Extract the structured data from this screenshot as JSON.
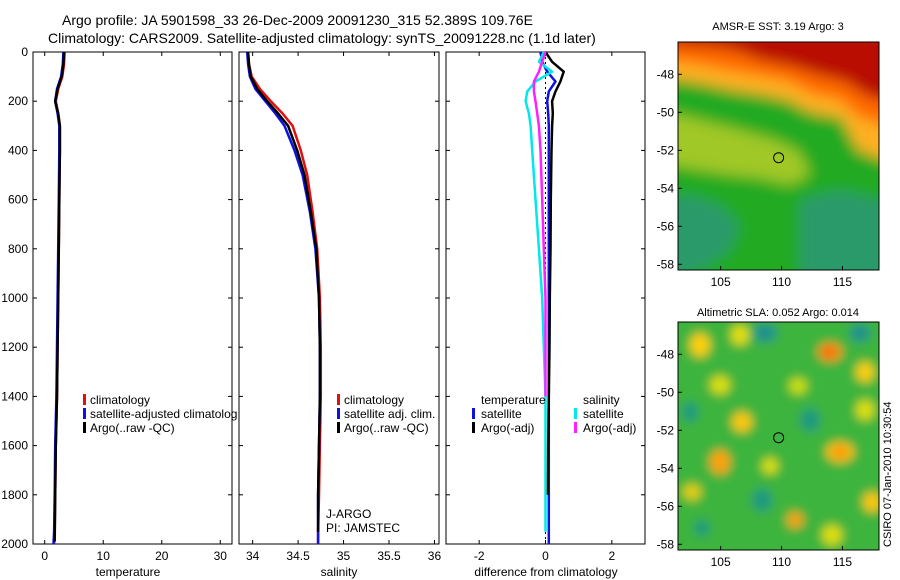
{
  "title_line1": "Argo profile: JA 5901598_33 26-Dec-2009 20091230_315 52.389S 109.76E",
  "title_line2": "Climatology: CARS2009. Satellite-adjusted climatology: synTS_20091228.nc (1.1d later)",
  "credit": "CSIRO 07-Jan-2010 10:30:54",
  "colors": {
    "red": "#e01010",
    "blue": "#1010e0",
    "black": "#000000",
    "cyan": "#00e8e8",
    "magenta": "#ff20ff"
  },
  "chart_data": [
    {
      "type": "line",
      "id": "temperature",
      "xlabel": "temperature",
      "ylabel": "depth",
      "xlim": [
        -2,
        32
      ],
      "ylim": [
        2000,
        0
      ],
      "xticks": [
        0,
        10,
        20,
        30
      ],
      "yticks": [
        0,
        200,
        400,
        600,
        800,
        1000,
        1200,
        1400,
        1600,
        1800,
        2000
      ],
      "series": [
        {
          "name": "climatology",
          "color": "red",
          "x": [
            3.4,
            3.3,
            3.0,
            2.3,
            1.9,
            2.3,
            2.6,
            2.6,
            2.5,
            2.4,
            2.3,
            2.2,
            2.1,
            2.0,
            1.9,
            1.8,
            1.7,
            1.6
          ],
          "y": [
            0,
            50,
            100,
            150,
            200,
            250,
            300,
            400,
            600,
            800,
            1000,
            1200,
            1400,
            1500,
            1600,
            1800,
            1950,
            2000
          ]
        },
        {
          "name": "satellite-adjusted climatology",
          "color": "blue",
          "x": [
            3.2,
            3.1,
            2.8,
            2.1,
            1.8,
            2.2,
            2.5,
            2.5,
            2.4,
            2.3,
            2.2,
            2.1,
            2.0,
            1.9,
            1.8,
            1.7,
            1.6,
            1.5
          ],
          "y": [
            0,
            50,
            100,
            150,
            200,
            250,
            300,
            400,
            600,
            800,
            1000,
            1200,
            1400,
            1500,
            1600,
            1800,
            1950,
            2000
          ]
        },
        {
          "name": "Argo(..raw -QC)",
          "color": "black",
          "x": [
            3.3,
            3.2,
            2.9,
            2.2,
            1.8,
            2.3,
            2.6,
            2.6,
            2.5,
            2.4,
            2.3,
            2.2,
            2.1,
            2.0,
            1.9,
            1.8,
            1.7
          ],
          "y": [
            0,
            50,
            100,
            150,
            200,
            250,
            300,
            400,
            600,
            800,
            1000,
            1200,
            1400,
            1500,
            1600,
            1800,
            1990
          ]
        }
      ],
      "legend": {
        "position": "center-right",
        "entries": [
          "climatology",
          "satellite-adjusted climatolog",
          "Argo(..raw -QC)"
        ]
      }
    },
    {
      "type": "line",
      "id": "salinity",
      "xlabel": "salinity",
      "ylabel": "depth",
      "xlim": [
        33.85,
        36.05
      ],
      "ylim": [
        2000,
        0
      ],
      "xticks": [
        34,
        34.5,
        35,
        35.5,
        36
      ],
      "yticks": [
        0,
        200,
        400,
        600,
        800,
        1000,
        1200,
        1400,
        1600,
        1800,
        2000
      ],
      "series": [
        {
          "name": "climatology",
          "color": "red",
          "x": [
            33.95,
            33.96,
            33.99,
            34.08,
            34.2,
            34.33,
            34.44,
            34.53,
            34.6,
            34.66,
            34.71,
            34.74,
            34.75,
            34.75,
            34.74,
            34.73,
            34.72,
            34.72
          ],
          "y": [
            0,
            50,
            100,
            150,
            200,
            250,
            300,
            400,
            500,
            650,
            800,
            1000,
            1200,
            1400,
            1600,
            1800,
            1950,
            2000
          ]
        },
        {
          "name": "satellite adj. clim.",
          "color": "blue",
          "x": [
            33.94,
            33.95,
            33.97,
            34.03,
            34.14,
            34.25,
            34.35,
            34.46,
            34.55,
            34.63,
            34.69,
            34.73,
            34.74,
            34.74,
            34.73,
            34.72,
            34.72,
            34.72
          ],
          "y": [
            0,
            50,
            100,
            150,
            200,
            250,
            300,
            400,
            500,
            650,
            800,
            1000,
            1200,
            1400,
            1600,
            1800,
            1950,
            2000
          ]
        },
        {
          "name": "Argo(..raw -QC)",
          "color": "black",
          "x": [
            33.95,
            33.96,
            33.98,
            34.05,
            34.16,
            34.28,
            34.39,
            34.49,
            34.57,
            34.64,
            34.7,
            34.73,
            34.74,
            34.74,
            34.73,
            34.72,
            34.72
          ],
          "y": [
            0,
            50,
            100,
            150,
            200,
            250,
            300,
            400,
            500,
            650,
            800,
            1000,
            1200,
            1400,
            1600,
            1800,
            1950
          ]
        }
      ],
      "legend": {
        "position": "center-right",
        "entries": [
          "climatology",
          "satellite adj. clim.",
          "Argo(..raw -QC)"
        ]
      },
      "annotations": [
        "J-ARGO",
        "PI: JAMSTEC"
      ]
    },
    {
      "type": "line",
      "id": "difference",
      "xlabel": "difference from climatology",
      "ylabel": "depth",
      "xlim": [
        -3,
        3
      ],
      "ylim": [
        2000,
        0
      ],
      "xticks": [
        -2,
        0,
        2
      ],
      "yticks": [
        0,
        200,
        400,
        600,
        800,
        1000,
        1200,
        1400,
        1600,
        1800,
        2000
      ],
      "zero_line": true,
      "series": [
        {
          "name": "temperature satellite",
          "color": "blue",
          "x": [
            -0.15,
            -0.1,
            0.05,
            0.3,
            0.1,
            0.05,
            0.08,
            0.1,
            0.1,
            0.1,
            0.1,
            0.1,
            0.1,
            0.1,
            0.1,
            0.1,
            0.1
          ],
          "y": [
            0,
            40,
            80,
            120,
            160,
            200,
            250,
            300,
            400,
            600,
            800,
            1000,
            1200,
            1400,
            1600,
            1800,
            2000
          ]
        },
        {
          "name": "temperature Argo(-adj)",
          "color": "black",
          "x": [
            0.0,
            0.2,
            0.55,
            0.45,
            0.3,
            0.2,
            0.22,
            0.2,
            0.18,
            0.16,
            0.15,
            0.13,
            0.12,
            0.1,
            0.08,
            0.07
          ],
          "y": [
            0,
            40,
            80,
            120,
            160,
            200,
            250,
            300,
            400,
            600,
            800,
            1000,
            1200,
            1400,
            1600,
            1800
          ]
        },
        {
          "name": "salinity satellite",
          "color": "cyan",
          "x": [
            -0.05,
            -0.2,
            0.2,
            -0.3,
            -0.55,
            -0.6,
            -0.5,
            -0.45,
            -0.4,
            -0.3,
            -0.2,
            -0.1,
            -0.05,
            0.0,
            0.0,
            0.0,
            0.0
          ],
          "y": [
            0,
            40,
            80,
            120,
            160,
            200,
            250,
            300,
            400,
            600,
            800,
            1000,
            1200,
            1400,
            1600,
            1800,
            1950
          ]
        },
        {
          "name": "salinity Argo(-adj)",
          "color": "magenta",
          "x": [
            0.0,
            -0.1,
            -0.2,
            -0.35,
            -0.35,
            -0.3,
            -0.25,
            -0.2,
            -0.15,
            -0.1,
            -0.05,
            0.0,
            0.0,
            0.0
          ],
          "y": [
            0,
            40,
            80,
            120,
            160,
            200,
            250,
            300,
            400,
            600,
            800,
            1000,
            1200,
            1400
          ]
        }
      ],
      "legend": {
        "position": "center",
        "headers": [
          "temperature",
          "salinity"
        ],
        "entries": [
          "satellite",
          "Argo(-adj)",
          "satellite",
          "Argo(-adj)"
        ]
      }
    },
    {
      "type": "heatmap",
      "id": "sst_map",
      "title": "AMSR-E SST: 3.19 Argo: 3",
      "xlim": [
        101.5,
        118
      ],
      "ylim": [
        -58.3,
        -46.3
      ],
      "xticks": [
        105,
        110,
        115
      ],
      "yticks": [
        -48,
        -50,
        -52,
        -54,
        -56,
        -58
      ],
      "marker": {
        "lon": 109.76,
        "lat": -52.389
      }
    },
    {
      "type": "heatmap",
      "id": "sla_map",
      "title": "Altimetric SLA: 0.052 Argo: 0.014",
      "xlim": [
        101.5,
        118
      ],
      "ylim": [
        -58.3,
        -46.3
      ],
      "xticks": [
        105,
        110,
        115
      ],
      "yticks": [
        -48,
        -50,
        -52,
        -54,
        -56,
        -58
      ],
      "marker": {
        "lon": 109.76,
        "lat": -52.389
      }
    }
  ]
}
